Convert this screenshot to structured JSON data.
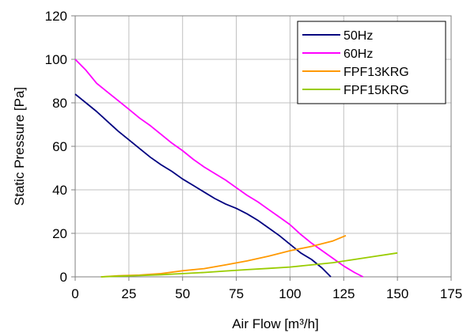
{
  "chart_data": {
    "type": "line",
    "xlabel": "Air Flow  [m³/h]",
    "ylabel": "Static Pressure [Pa]",
    "xlim": [
      0,
      175
    ],
    "ylim": [
      0,
      120
    ],
    "x_ticks": [
      "0",
      "25",
      "50",
      "75",
      "100",
      "125",
      "150",
      "175"
    ],
    "y_ticks": [
      "0",
      "20",
      "40",
      "60",
      "80",
      "100",
      "120"
    ],
    "grid": true,
    "legend_position": "top-right",
    "series": [
      {
        "name": "50Hz",
        "color": "#000080",
        "points": [
          [
            0,
            84
          ],
          [
            5,
            80
          ],
          [
            10,
            76
          ],
          [
            15,
            71.5
          ],
          [
            20,
            67
          ],
          [
            25,
            63
          ],
          [
            30,
            59
          ],
          [
            35,
            55
          ],
          [
            40,
            51.5
          ],
          [
            45,
            48.5
          ],
          [
            50,
            45
          ],
          [
            55,
            42
          ],
          [
            60,
            39
          ],
          [
            65,
            36
          ],
          [
            70,
            33.5
          ],
          [
            75,
            31.5
          ],
          [
            80,
            29
          ],
          [
            85,
            26
          ],
          [
            90,
            22.5
          ],
          [
            95,
            19
          ],
          [
            100,
            15
          ],
          [
            105,
            11
          ],
          [
            110,
            8
          ],
          [
            115,
            4
          ],
          [
            119,
            0
          ]
        ]
      },
      {
        "name": "60Hz",
        "color": "#ff00ff",
        "points": [
          [
            0,
            100
          ],
          [
            5,
            95
          ],
          [
            10,
            89
          ],
          [
            15,
            85
          ],
          [
            20,
            81
          ],
          [
            25,
            77
          ],
          [
            30,
            73
          ],
          [
            35,
            69.5
          ],
          [
            40,
            65.5
          ],
          [
            45,
            61.5
          ],
          [
            50,
            58
          ],
          [
            55,
            54
          ],
          [
            60,
            50.5
          ],
          [
            65,
            47.5
          ],
          [
            70,
            44.5
          ],
          [
            75,
            41
          ],
          [
            80,
            37.5
          ],
          [
            85,
            34.5
          ],
          [
            90,
            31
          ],
          [
            95,
            27.5
          ],
          [
            100,
            24
          ],
          [
            105,
            19.5
          ],
          [
            110,
            15.5
          ],
          [
            115,
            12
          ],
          [
            120,
            8.5
          ],
          [
            125,
            5
          ],
          [
            130,
            2
          ],
          [
            134,
            0
          ]
        ]
      },
      {
        "name": "FPF13KRG",
        "color": "#ff9900",
        "points": [
          [
            12,
            0
          ],
          [
            20,
            0.5
          ],
          [
            30,
            0.8
          ],
          [
            40,
            1.5
          ],
          [
            50,
            2.8
          ],
          [
            60,
            3.8
          ],
          [
            70,
            5.5
          ],
          [
            80,
            7.3
          ],
          [
            90,
            9.5
          ],
          [
            100,
            12
          ],
          [
            110,
            14
          ],
          [
            120,
            16.5
          ],
          [
            126,
            19
          ]
        ]
      },
      {
        "name": "FPF15KRG",
        "color": "#99cc00",
        "points": [
          [
            12,
            0
          ],
          [
            20,
            0.3
          ],
          [
            30,
            0.6
          ],
          [
            40,
            1
          ],
          [
            50,
            1.5
          ],
          [
            60,
            2
          ],
          [
            70,
            2.7
          ],
          [
            80,
            3.3
          ],
          [
            90,
            3.9
          ],
          [
            100,
            4.5
          ],
          [
            110,
            5.5
          ],
          [
            120,
            6.5
          ],
          [
            130,
            8
          ],
          [
            140,
            9.5
          ],
          [
            150,
            11
          ]
        ]
      }
    ]
  }
}
